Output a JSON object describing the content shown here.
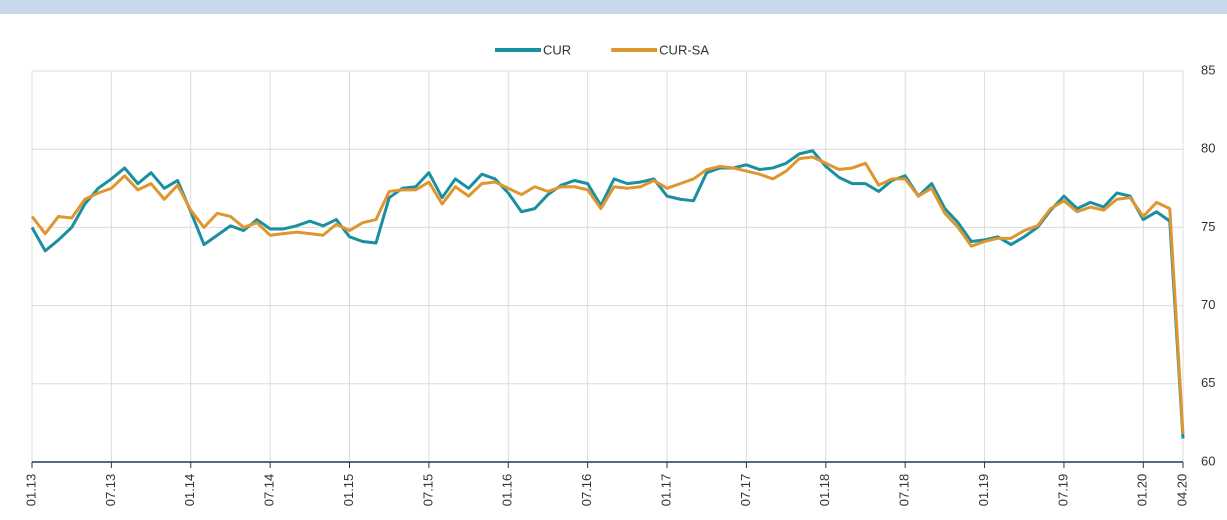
{
  "chart_data": {
    "type": "line",
    "categories": [
      "01.13",
      null,
      null,
      null,
      null,
      null,
      "07.13",
      null,
      null,
      null,
      null,
      null,
      "01.14",
      null,
      null,
      null,
      null,
      null,
      "07.14",
      null,
      null,
      null,
      null,
      null,
      "01.15",
      null,
      null,
      null,
      null,
      null,
      "07.15",
      null,
      null,
      null,
      null,
      null,
      "01.16",
      null,
      null,
      null,
      null,
      null,
      "07.16",
      null,
      null,
      null,
      null,
      null,
      "01.17",
      null,
      null,
      null,
      null,
      null,
      "07.17",
      null,
      null,
      null,
      null,
      null,
      "01.18",
      null,
      null,
      null,
      null,
      null,
      "07.18",
      null,
      null,
      null,
      null,
      null,
      "01.19",
      null,
      null,
      null,
      null,
      null,
      "07.19",
      null,
      null,
      null,
      null,
      null,
      "01.20",
      null,
      null,
      "04.20"
    ],
    "series": [
      {
        "name": "CUR",
        "color": "#1a8fa0",
        "values": [
          75.0,
          73.5,
          74.2,
          75.0,
          76.5,
          77.5,
          78.1,
          78.8,
          77.8,
          78.5,
          77.5,
          78.0,
          76.0,
          73.9,
          74.5,
          75.1,
          74.8,
          75.5,
          74.9,
          74.9,
          75.1,
          75.4,
          75.1,
          75.5,
          74.4,
          74.1,
          74.0,
          76.9,
          77.5,
          77.6,
          78.5,
          76.9,
          78.1,
          77.5,
          78.4,
          78.1,
          77.2,
          76.0,
          76.2,
          77.1,
          77.7,
          78.0,
          77.8,
          76.4,
          78.1,
          77.8,
          77.9,
          78.1,
          77.0,
          76.8,
          76.7,
          78.5,
          78.8,
          78.8,
          79.0,
          78.7,
          78.8,
          79.1,
          79.7,
          79.9,
          78.9,
          78.2,
          77.8,
          77.8,
          77.3,
          78.0,
          78.3,
          77.0,
          77.8,
          76.2,
          75.3,
          74.1,
          74.2,
          74.4,
          73.9,
          74.4,
          75.0,
          76.1,
          77.0,
          76.2,
          76.6,
          76.3,
          77.2,
          77.0,
          75.5,
          76.0,
          75.4,
          61.5
        ]
      },
      {
        "name": "CUR-SA",
        "color": "#e0962f",
        "values": [
          75.7,
          74.6,
          75.7,
          75.6,
          76.8,
          77.2,
          77.5,
          78.3,
          77.4,
          77.8,
          76.8,
          77.7,
          76.1,
          75.0,
          75.9,
          75.7,
          75.0,
          75.3,
          74.5,
          74.6,
          74.7,
          74.6,
          74.5,
          75.2,
          74.8,
          75.3,
          75.5,
          77.3,
          77.4,
          77.4,
          77.9,
          76.5,
          77.6,
          77.0,
          77.8,
          77.9,
          77.5,
          77.1,
          77.6,
          77.3,
          77.6,
          77.6,
          77.4,
          76.2,
          77.6,
          77.5,
          77.6,
          78.0,
          77.5,
          77.8,
          78.1,
          78.7,
          78.9,
          78.8,
          78.6,
          78.4,
          78.1,
          78.6,
          79.4,
          79.5,
          79.1,
          78.7,
          78.8,
          79.1,
          77.7,
          78.1,
          78.1,
          77.0,
          77.5,
          75.9,
          75.0,
          73.8,
          74.1,
          74.3,
          74.3,
          74.8,
          75.1,
          76.2,
          76.7,
          76.0,
          76.3,
          76.1,
          76.8,
          76.9,
          75.7,
          76.6,
          76.2,
          61.8
        ]
      }
    ],
    "ylim": [
      60,
      85
    ],
    "yticks": [
      60,
      65,
      70,
      75,
      80,
      85
    ],
    "grid": true,
    "legend": "top"
  }
}
